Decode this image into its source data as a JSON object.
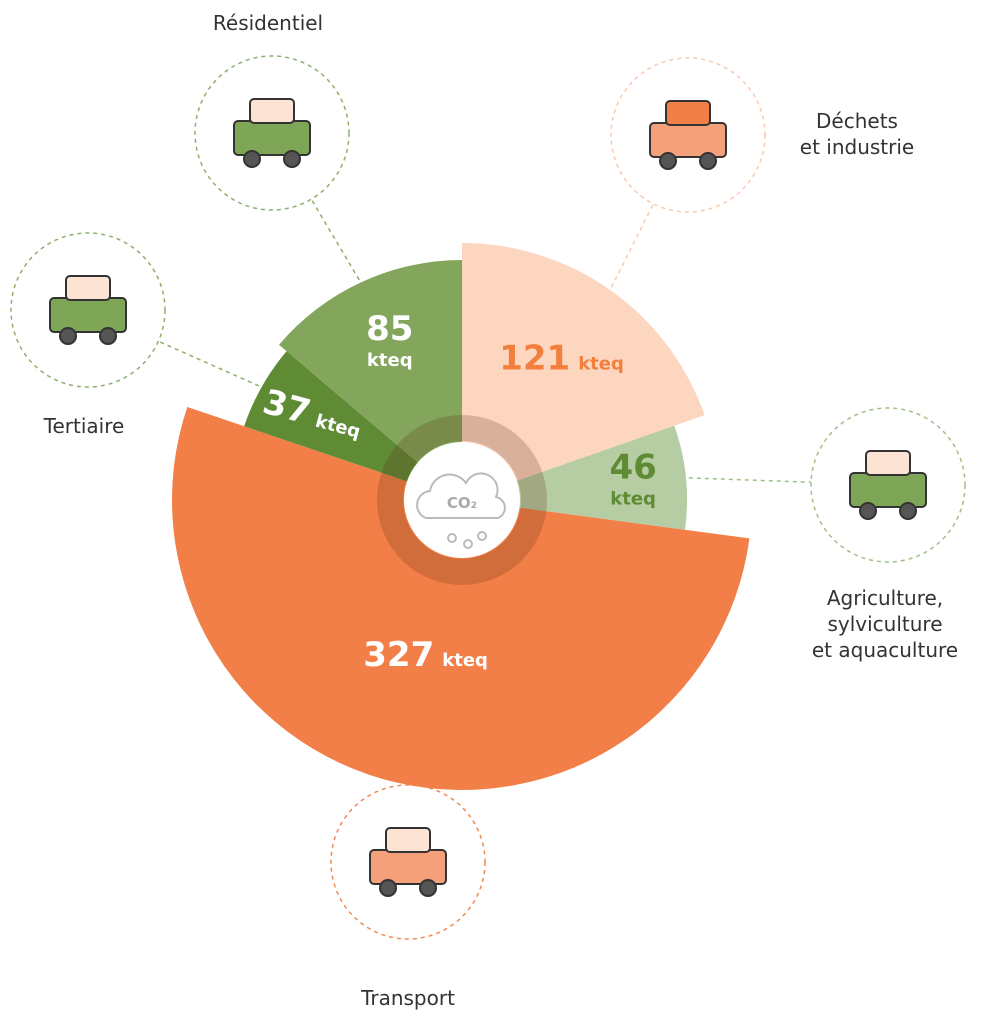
{
  "chart_data": {
    "type": "pie",
    "categories": [
      "Déchets\net industrie",
      "Agriculture,\nsylviculture\net aquaculture",
      "Transport",
      "Tertiaire",
      "Résidentiel"
    ],
    "values": [
      121,
      46,
      327,
      37,
      85
    ],
    "unit": "kteq",
    "colors": [
      "#fdd6c0",
      "#b6cca2",
      "#f27f47",
      "#5f8b35",
      "#83a65c"
    ],
    "label_colors": [
      "#f27f3c",
      "#5f8b35",
      "#ffffff",
      "#ffffff",
      "#ffffff"
    ],
    "center_label": "CO₂"
  }
}
